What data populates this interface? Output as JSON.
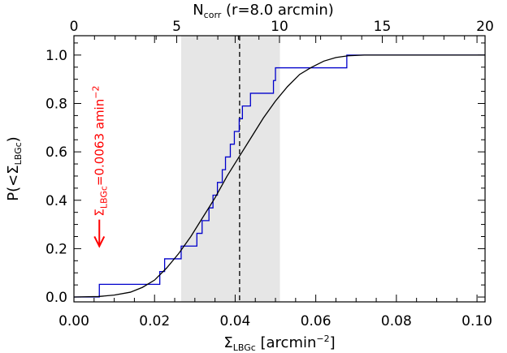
{
  "chart_data": {
    "type": "line",
    "xlabel": {
      "main": "Σ",
      "sub": "LBGc",
      "unit_open": " [arcmin",
      "unit_sup": "−2",
      "unit_close": "]"
    },
    "ylabel": {
      "main": "P(<Σ",
      "sub": "LBGc",
      "close": ")"
    },
    "top_axis_label": {
      "main": "N",
      "sub": "corr",
      "rest": " (r=8.0 arcmin)"
    },
    "xlim": [
      0.0,
      0.102
    ],
    "ylim": [
      -0.02,
      1.08
    ],
    "top_xlim": [
      0,
      20
    ],
    "x_ticks": [
      "0.00",
      "0.02",
      "0.04",
      "0.06",
      "0.08",
      "0.10"
    ],
    "x_tick_values": [
      0.0,
      0.02,
      0.04,
      0.06,
      0.08,
      0.1
    ],
    "y_ticks": [
      "0.0",
      "0.2",
      "0.4",
      "0.6",
      "0.8",
      "1.0"
    ],
    "y_tick_values": [
      0.0,
      0.2,
      0.4,
      0.6,
      0.8,
      1.0
    ],
    "top_ticks": [
      "0",
      "5",
      "10",
      "15",
      "20"
    ],
    "top_tick_values": [
      0,
      5,
      10,
      15,
      20
    ],
    "shaded_band": {
      "x_range": [
        0.0266,
        0.0511
      ],
      "color": "#e6e6e6"
    },
    "median_line": {
      "x": 0.0411,
      "style": "dashed",
      "color": "#000000"
    },
    "series": [
      {
        "style": "step",
        "color": "#0000cc",
        "x": [
          0.0,
          0.0063,
          0.0213,
          0.0225,
          0.0266,
          0.0305,
          0.0318,
          0.0335,
          0.0345,
          0.0356,
          0.0368,
          0.0376,
          0.0388,
          0.0398,
          0.041,
          0.0418,
          0.0438,
          0.0444,
          0.046,
          0.048,
          0.0495,
          0.05,
          0.0509,
          0.0553,
          0.0677,
          0.102
        ],
        "y": [
          0.0,
          0.0526,
          0.1053,
          0.1579,
          0.2105,
          0.2632,
          0.3158,
          0.3684,
          0.4211,
          0.4737,
          0.5263,
          0.5789,
          0.6316,
          0.6842,
          0.7368,
          0.7895,
          0.8421,
          0.8421,
          0.8421,
          0.8421,
          0.8947,
          0.9474,
          0.9474,
          0.9474,
          1.0,
          1.0
        ]
      },
      {
        "style": "smooth",
        "color": "#000000",
        "x": [
          0.0,
          0.006,
          0.01,
          0.014,
          0.017,
          0.02,
          0.023,
          0.026,
          0.029,
          0.032,
          0.035,
          0.038,
          0.041,
          0.044,
          0.047,
          0.05,
          0.053,
          0.056,
          0.059,
          0.062,
          0.065,
          0.068,
          0.072,
          0.08,
          0.102
        ],
        "y": [
          0.0,
          0.002,
          0.008,
          0.02,
          0.04,
          0.07,
          0.12,
          0.18,
          0.25,
          0.33,
          0.41,
          0.5,
          0.58,
          0.66,
          0.74,
          0.81,
          0.87,
          0.92,
          0.95,
          0.975,
          0.99,
          0.997,
          1.0,
          1.0,
          1.0
        ]
      }
    ],
    "annotation": {
      "text_main": "Σ",
      "text_sub": "LBGc",
      "text_rest": "=0.0063 amin",
      "text_sup": "−2",
      "color": "#ff0000",
      "arrow_x": 0.0063,
      "arrow_from_y": 0.32,
      "arrow_to_y": 0.21
    }
  }
}
